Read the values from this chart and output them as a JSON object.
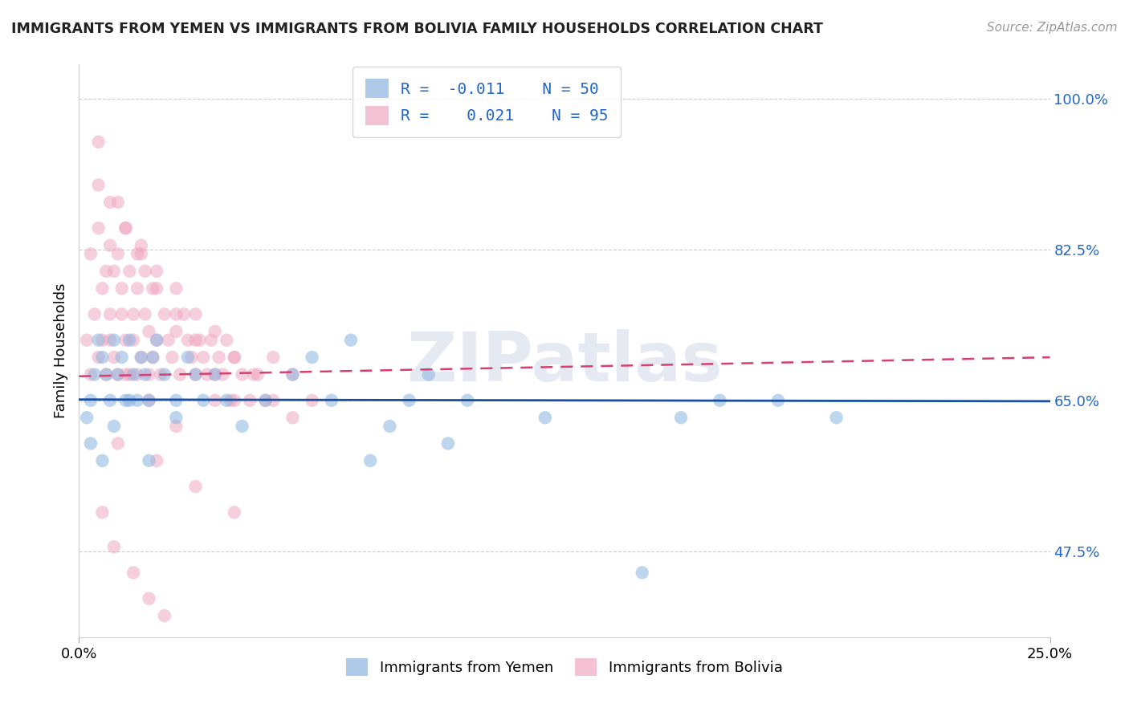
{
  "title": "IMMIGRANTS FROM YEMEN VS IMMIGRANTS FROM BOLIVIA FAMILY HOUSEHOLDS CORRELATION CHART",
  "source": "Source: ZipAtlas.com",
  "xmin": 0.0,
  "xmax": 0.25,
  "ymin": 0.375,
  "ymax": 1.04,
  "yticks": [
    0.475,
    0.65,
    0.825,
    1.0
  ],
  "ytick_labels": [
    "47.5%",
    "65.0%",
    "82.5%",
    "100.0%"
  ],
  "xtick_labels": [
    "0.0%",
    "25.0%"
  ],
  "label1": "Immigrants from Yemen",
  "label2": "Immigrants from Bolivia",
  "color1": "#8ab4e0",
  "color2": "#f0a8c0",
  "trend_color1": "#1a4fa0",
  "trend_color2": "#d44070",
  "tick_label_color": "#2166c8",
  "watermark": "ZIPatlas",
  "yemen_trend_y0": 0.651,
  "yemen_trend_y1": 0.649,
  "bolivia_trend_y0": 0.678,
  "bolivia_trend_y1": 0.7,
  "yemen_x": [
    0.002,
    0.003,
    0.004,
    0.005,
    0.006,
    0.007,
    0.008,
    0.009,
    0.01,
    0.011,
    0.012,
    0.013,
    0.014,
    0.015,
    0.016,
    0.017,
    0.018,
    0.019,
    0.02,
    0.022,
    0.025,
    0.028,
    0.03,
    0.032,
    0.035,
    0.038,
    0.042,
    0.048,
    0.055,
    0.06,
    0.065,
    0.07,
    0.075,
    0.08,
    0.085,
    0.09,
    0.095,
    0.1,
    0.12,
    0.145,
    0.155,
    0.165,
    0.18,
    0.195,
    0.003,
    0.006,
    0.009,
    0.013,
    0.018,
    0.025
  ],
  "yemen_y": [
    0.63,
    0.65,
    0.68,
    0.72,
    0.7,
    0.68,
    0.65,
    0.72,
    0.68,
    0.7,
    0.65,
    0.72,
    0.68,
    0.65,
    0.7,
    0.68,
    0.65,
    0.7,
    0.72,
    0.68,
    0.65,
    0.7,
    0.68,
    0.65,
    0.68,
    0.65,
    0.62,
    0.65,
    0.68,
    0.7,
    0.65,
    0.72,
    0.58,
    0.62,
    0.65,
    0.68,
    0.6,
    0.65,
    0.63,
    0.45,
    0.63,
    0.65,
    0.65,
    0.63,
    0.6,
    0.58,
    0.62,
    0.65,
    0.58,
    0.63
  ],
  "bolivia_x": [
    0.002,
    0.003,
    0.003,
    0.004,
    0.005,
    0.005,
    0.006,
    0.006,
    0.007,
    0.007,
    0.008,
    0.008,
    0.009,
    0.009,
    0.01,
    0.01,
    0.011,
    0.011,
    0.012,
    0.012,
    0.013,
    0.013,
    0.014,
    0.014,
    0.015,
    0.015,
    0.016,
    0.016,
    0.017,
    0.017,
    0.018,
    0.018,
    0.019,
    0.019,
    0.02,
    0.021,
    0.022,
    0.023,
    0.024,
    0.025,
    0.026,
    0.027,
    0.028,
    0.029,
    0.03,
    0.031,
    0.032,
    0.033,
    0.034,
    0.035,
    0.036,
    0.037,
    0.038,
    0.039,
    0.04,
    0.042,
    0.044,
    0.046,
    0.048,
    0.05,
    0.055,
    0.06,
    0.005,
    0.008,
    0.012,
    0.016,
    0.02,
    0.025,
    0.03,
    0.035,
    0.04,
    0.045,
    0.05,
    0.055,
    0.008,
    0.012,
    0.018,
    0.025,
    0.01,
    0.02,
    0.03,
    0.04,
    0.005,
    0.01,
    0.015,
    0.02,
    0.025,
    0.03,
    0.035,
    0.04,
    0.006,
    0.009,
    0.014,
    0.018,
    0.022
  ],
  "bolivia_y": [
    0.72,
    0.68,
    0.82,
    0.75,
    0.7,
    0.85,
    0.72,
    0.78,
    0.68,
    0.8,
    0.75,
    0.83,
    0.7,
    0.8,
    0.68,
    0.82,
    0.75,
    0.78,
    0.72,
    0.85,
    0.68,
    0.8,
    0.75,
    0.72,
    0.78,
    0.68,
    0.82,
    0.7,
    0.75,
    0.8,
    0.68,
    0.73,
    0.78,
    0.7,
    0.72,
    0.68,
    0.75,
    0.72,
    0.7,
    0.73,
    0.68,
    0.75,
    0.72,
    0.7,
    0.68,
    0.72,
    0.7,
    0.68,
    0.72,
    0.65,
    0.7,
    0.68,
    0.72,
    0.65,
    0.7,
    0.68,
    0.65,
    0.68,
    0.65,
    0.7,
    0.68,
    0.65,
    0.9,
    0.88,
    0.85,
    0.83,
    0.8,
    0.78,
    0.75,
    0.73,
    0.7,
    0.68,
    0.65,
    0.63,
    0.72,
    0.68,
    0.65,
    0.62,
    0.6,
    0.58,
    0.55,
    0.52,
    0.95,
    0.88,
    0.82,
    0.78,
    0.75,
    0.72,
    0.68,
    0.65,
    0.52,
    0.48,
    0.45,
    0.42,
    0.4
  ]
}
